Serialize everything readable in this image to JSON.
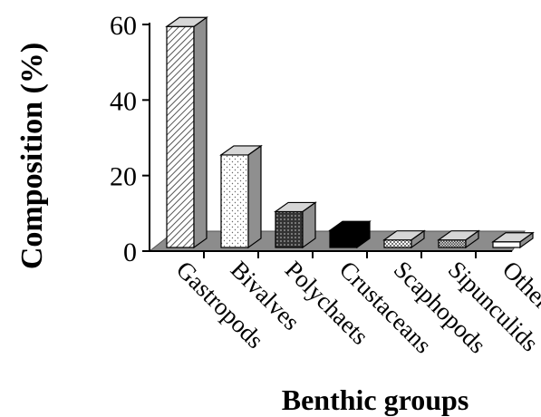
{
  "chart_data": {
    "type": "bar",
    "style": "3d",
    "xlabel": "Benthic groups",
    "ylabel": "Composition (%)",
    "ylim": [
      0,
      60
    ],
    "yticks": [
      0,
      20,
      40,
      60
    ],
    "grid": false,
    "legend": "none",
    "categories": [
      "Gastropods",
      "Bivalves",
      "Polychaets",
      "Crustaceans",
      "Scaphopods",
      "Sipunculids",
      "Others"
    ],
    "values": [
      58.5,
      24.5,
      9.5,
      4.5,
      2,
      2,
      1.5
    ],
    "patterns": [
      "diagonal-hatch",
      "dots",
      "crosshatch",
      "solid-black",
      "checker-light",
      "checker-dense",
      "blank"
    ],
    "colors": {
      "floor": "#8c8c8c",
      "bar_side": "#8f8f8f",
      "bar_top": "#d6d6d6",
      "axis": "#000000"
    }
  }
}
